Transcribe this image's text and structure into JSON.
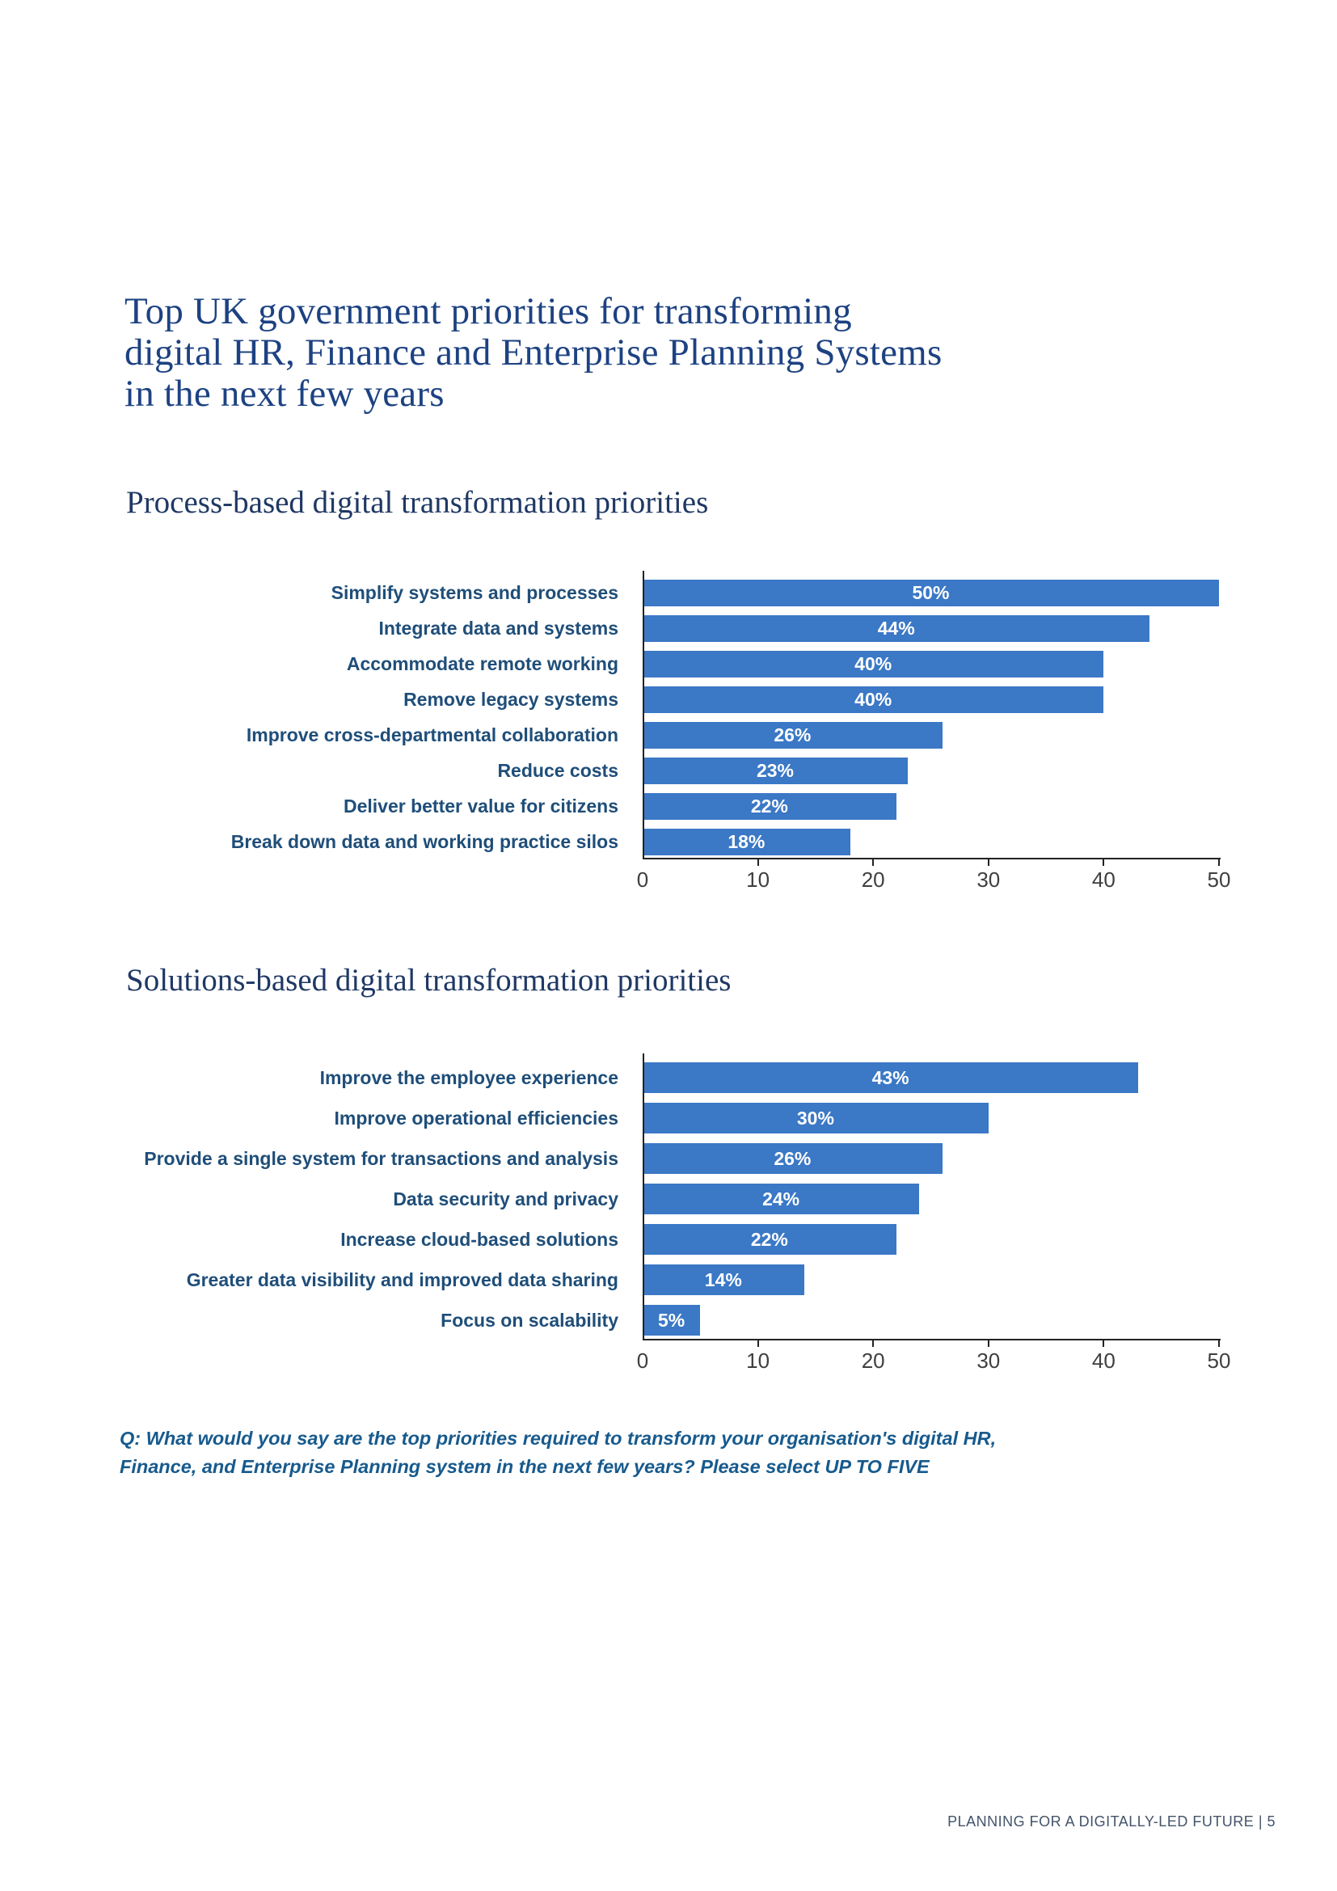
{
  "page": {
    "title_lines": [
      "Top UK government priorities for transforming",
      "digital HR, Finance and Enterprise Planning Systems",
      "in the next few years"
    ],
    "question_lines": [
      "Q: What would you say are the top priorities required to transform your organisation's digital HR,",
      "Finance, and Enterprise Planning system in the next few years? Please select UP TO FIVE"
    ],
    "footer": "PLANNING FOR A DIGITALLY-LED FUTURE | 5"
  },
  "colors": {
    "bar": "#3B78C6",
    "category_label": "#1F4E79",
    "title": "#1D4282",
    "heading": "#1F3864",
    "question": "#175A8D",
    "footer": "#44546A",
    "axis": "#222222",
    "tick_label": "#3F3F3F",
    "value_text": "#FFFFFF"
  },
  "chart_data": [
    {
      "type": "bar",
      "orientation": "horizontal",
      "title": "Process-based digital transformation priorities",
      "categories": [
        "Simplify systems and processes",
        "Integrate data and systems",
        "Accommodate remote working",
        "Remove legacy systems",
        "Improve cross-departmental collaboration",
        "Reduce costs",
        "Deliver better value for citizens",
        "Break down data and working practice silos"
      ],
      "values": [
        50,
        44,
        40,
        40,
        26,
        23,
        22,
        18
      ],
      "value_labels": [
        "50%",
        "44%",
        "40%",
        "40%",
        "26%",
        "23%",
        "22%",
        "18%"
      ],
      "xlabel": "",
      "ylabel": "",
      "xlim": [
        0,
        50
      ],
      "xticks": [
        0,
        10,
        20,
        30,
        40,
        50
      ],
      "grid": false,
      "legend": "none",
      "value_label_position": "center-inside"
    },
    {
      "type": "bar",
      "orientation": "horizontal",
      "title": "Solutions-based digital transformation priorities",
      "categories": [
        "Improve the employee experience",
        "Improve operational efficiencies",
        "Provide a single system for transactions and analysis",
        "Data security and privacy",
        "Increase cloud-based solutions",
        "Greater data visibility and improved data sharing",
        "Focus on scalability"
      ],
      "values": [
        43,
        30,
        26,
        24,
        22,
        14,
        5
      ],
      "value_labels": [
        "43%",
        "30%",
        "26%",
        "24%",
        "22%",
        "14%",
        "5%"
      ],
      "xlabel": "",
      "ylabel": "",
      "xlim": [
        0,
        50
      ],
      "xticks": [
        0,
        10,
        20,
        30,
        40,
        50
      ],
      "grid": false,
      "legend": "none",
      "value_label_position": "center-inside"
    }
  ]
}
